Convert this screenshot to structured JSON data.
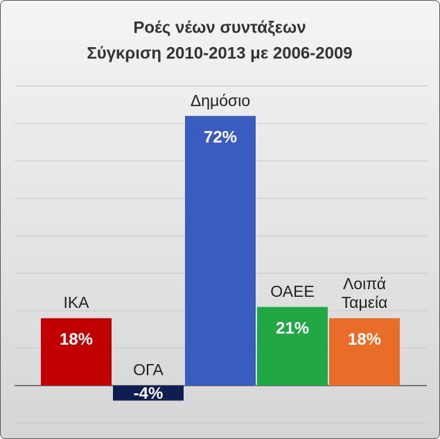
{
  "chart_data": {
    "type": "bar",
    "title": "Ροές νέων συντάξεων",
    "subtitle": "Σύγκριση 2010-2013 με 2006-2009",
    "categories": [
      "ΙΚΑ",
      "ΟΓΑ",
      "Δημόσιο",
      "ΟΑΕΕ",
      "Λοιπά Ταμεία"
    ],
    "values": [
      18,
      -4,
      72,
      21,
      18
    ],
    "value_labels": [
      "18%",
      "-4%",
      "72%",
      "21%",
      "18%"
    ],
    "colors": [
      "#c00000",
      "#0e1e50",
      "#3a5bbf",
      "#21a844",
      "#e96c28"
    ],
    "ylim": [
      -10,
      80
    ],
    "yticks": [
      -10,
      0,
      10,
      20,
      30,
      40,
      50,
      60,
      70,
      80
    ],
    "grid": true
  }
}
